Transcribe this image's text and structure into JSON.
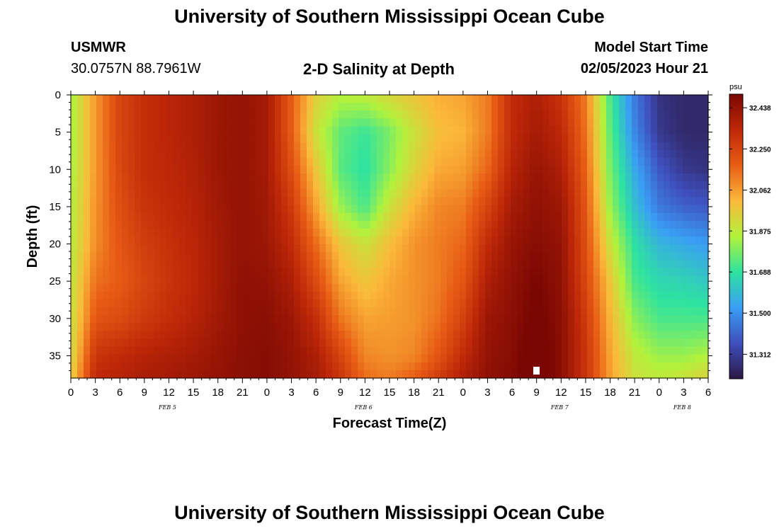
{
  "header": {
    "title": "University of Southern Mississippi Ocean Cube",
    "station_name": "USMWR",
    "station_coords": "30.0757N  88.7961W",
    "plot_title": "2-D Salinity at Depth",
    "model_start_label": "Model Start Time",
    "model_start_value": "02/05/2023 Hour 21"
  },
  "footer": {
    "title": "University of Southern Mississippi Ocean Cube"
  },
  "colors": {
    "colormap": [
      "#2b1845",
      "#3f4fbd",
      "#3a9ef5",
      "#2ee3a0",
      "#b2f23c",
      "#fbb93a",
      "#e85d15",
      "#bf2808",
      "#7a0703"
    ]
  },
  "chart_data": {
    "type": "heatmap",
    "ylabel": "Depth (ft)",
    "xlabel": "Forecast Time(Z)",
    "ylim": [
      0,
      38
    ],
    "yticks": [
      0,
      5,
      10,
      15,
      20,
      25,
      30,
      35
    ],
    "y_reversed": true,
    "xticks": [
      "0",
      "3",
      "6",
      "9",
      "12",
      "15",
      "18",
      "21",
      "0",
      "3",
      "6",
      "9",
      "12",
      "15",
      "18",
      "21",
      "0",
      "3",
      "6",
      "9",
      "12",
      "15",
      "18",
      "21",
      "0",
      "3",
      "6"
    ],
    "date_labels": [
      "FEB 5",
      "FEB 6",
      "FEB 7",
      "FEB 8"
    ],
    "colorbar_unit": "psu",
    "colorbar_ticks": [
      "32.438",
      "32.250",
      "32.062",
      "31.875",
      "31.688",
      "31.500",
      "31.312"
    ],
    "value_range": [
      31.2,
      32.5
    ],
    "grid": false,
    "x_hours": [
      0,
      3,
      6,
      9,
      12,
      15,
      18,
      21,
      24,
      27,
      30,
      33,
      36,
      39,
      42,
      45,
      48,
      51,
      54,
      57,
      60,
      63,
      66,
      69,
      72,
      75,
      78
    ],
    "depths_ft": [
      0,
      5,
      10,
      15,
      20,
      25,
      30,
      35,
      38
    ],
    "values": [
      [
        31.83,
        31.83,
        31.84,
        31.85,
        31.86,
        31.88,
        31.89,
        31.91,
        31.95
      ],
      [
        32.07,
        32.07,
        32.07,
        32.08,
        32.09,
        32.14,
        32.2,
        32.3,
        32.34
      ],
      [
        32.25,
        32.25,
        32.24,
        32.22,
        32.2,
        32.18,
        32.23,
        32.33,
        32.36
      ],
      [
        32.32,
        32.32,
        32.32,
        32.3,
        32.27,
        32.25,
        32.28,
        32.36,
        32.39
      ],
      [
        32.35,
        32.35,
        32.34,
        32.33,
        32.31,
        32.3,
        32.32,
        32.38,
        32.4
      ],
      [
        32.38,
        32.38,
        32.37,
        32.36,
        32.35,
        32.34,
        32.36,
        32.4,
        32.42
      ],
      [
        32.42,
        32.42,
        32.42,
        32.41,
        32.4,
        32.4,
        32.41,
        32.43,
        32.44
      ],
      [
        32.44,
        32.44,
        32.44,
        32.44,
        32.44,
        32.45,
        32.45,
        32.46,
        32.46
      ],
      [
        32.4,
        32.4,
        32.4,
        32.41,
        32.42,
        32.44,
        32.46,
        32.47,
        32.47
      ],
      [
        32.18,
        32.18,
        32.22,
        32.28,
        32.33,
        32.38,
        32.42,
        32.44,
        32.44
      ],
      [
        31.95,
        31.9,
        31.98,
        32.05,
        32.15,
        32.23,
        32.32,
        32.38,
        32.4
      ],
      [
        31.86,
        31.75,
        31.74,
        31.82,
        31.98,
        32.05,
        32.13,
        32.25,
        32.3
      ],
      [
        31.88,
        31.7,
        31.68,
        31.72,
        31.9,
        31.98,
        32.05,
        32.1,
        32.15
      ],
      [
        31.93,
        31.78,
        31.8,
        31.9,
        32.0,
        32.04,
        32.06,
        32.08,
        32.12
      ],
      [
        31.98,
        31.9,
        31.94,
        32.02,
        32.08,
        32.08,
        32.08,
        32.1,
        32.18
      ],
      [
        32.03,
        32.0,
        32.04,
        32.1,
        32.12,
        32.12,
        32.14,
        32.2,
        32.28
      ],
      [
        32.05,
        32.02,
        32.06,
        32.12,
        32.16,
        32.2,
        32.26,
        32.33,
        32.38
      ],
      [
        32.12,
        32.12,
        32.16,
        32.25,
        32.33,
        32.38,
        32.42,
        32.44,
        32.45
      ],
      [
        32.33,
        32.33,
        32.36,
        32.4,
        32.43,
        32.45,
        32.46,
        32.47,
        32.48
      ],
      [
        32.38,
        32.4,
        32.43,
        32.45,
        32.47,
        32.5,
        32.52,
        32.55,
        32.55
      ],
      [
        32.3,
        32.34,
        32.38,
        32.42,
        32.44,
        32.45,
        32.46,
        32.46,
        32.46
      ],
      [
        32.12,
        32.14,
        32.17,
        32.2,
        32.22,
        32.24,
        32.28,
        32.3,
        32.3
      ],
      [
        31.72,
        31.75,
        31.78,
        31.82,
        31.9,
        31.98,
        32.02,
        32.05,
        32.06
      ],
      [
        31.45,
        31.48,
        31.55,
        31.6,
        31.68,
        31.72,
        31.8,
        31.88,
        31.9
      ],
      [
        31.28,
        31.3,
        31.38,
        31.45,
        31.58,
        31.66,
        31.72,
        31.82,
        31.88
      ],
      [
        31.25,
        31.25,
        31.3,
        31.4,
        31.55,
        31.65,
        31.72,
        31.82,
        31.9
      ],
      [
        31.25,
        31.25,
        31.28,
        31.38,
        31.52,
        31.62,
        31.72,
        31.85,
        31.95
      ]
    ]
  }
}
